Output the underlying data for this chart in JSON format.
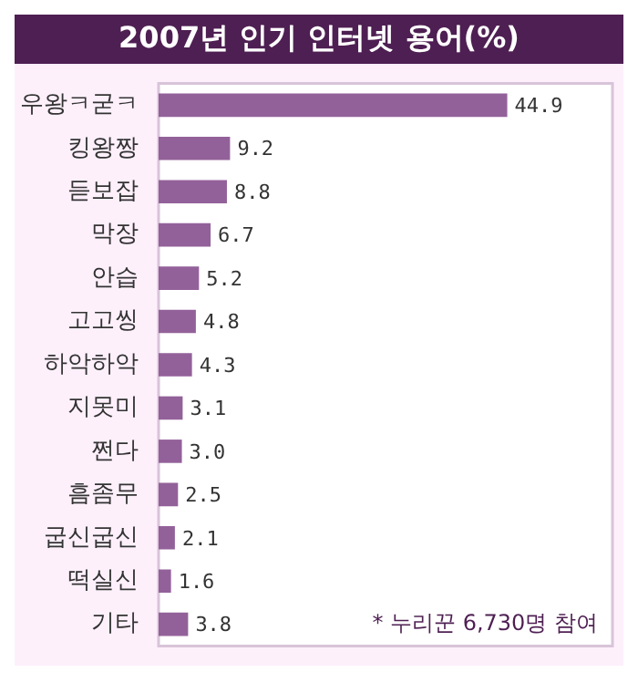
{
  "chart_data": {
    "type": "bar",
    "orientation": "horizontal",
    "title": "2007년 인기 인터넷 용어(%)",
    "categories": [
      "우왕ㅋ굳ㅋ",
      "킹왕짱",
      "듣보잡",
      "막장",
      "안습",
      "고고씽",
      "하악하악",
      "지못미",
      "쩐다",
      "흠좀무",
      "굽신굽신",
      "떡실신",
      "기타"
    ],
    "values": [
      44.9,
      9.2,
      8.8,
      6.7,
      5.2,
      4.8,
      4.3,
      3.1,
      3.0,
      2.5,
      2.1,
      1.6,
      3.8
    ],
    "color": "#93619a",
    "value_labels": [
      "44.9",
      "9.2",
      "8.8",
      "6.7",
      "5.2",
      "4.8",
      "4.3",
      "3.1",
      "3.0",
      "2.5",
      "2.1",
      "1.6",
      "3.8"
    ],
    "annotations": [
      "* 누리꾼 6,730명 참여"
    ]
  }
}
